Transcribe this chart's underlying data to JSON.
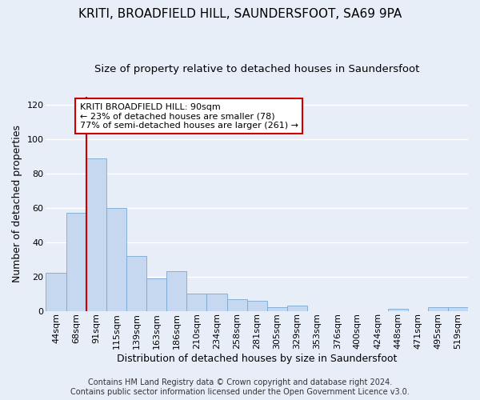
{
  "title": "KRITI, BROADFIELD HILL, SAUNDERSFOOT, SA69 9PA",
  "subtitle": "Size of property relative to detached houses in Saundersfoot",
  "xlabel": "Distribution of detached houses by size in Saundersfoot",
  "ylabel": "Number of detached properties",
  "footer_line1": "Contains HM Land Registry data © Crown copyright and database right 2024.",
  "footer_line2": "Contains public sector information licensed under the Open Government Licence v3.0.",
  "bin_labels": [
    "44sqm",
    "68sqm",
    "91sqm",
    "115sqm",
    "139sqm",
    "163sqm",
    "186sqm",
    "210sqm",
    "234sqm",
    "258sqm",
    "281sqm",
    "305sqm",
    "329sqm",
    "353sqm",
    "376sqm",
    "400sqm",
    "424sqm",
    "448sqm",
    "471sqm",
    "495sqm",
    "519sqm"
  ],
  "bar_values": [
    22,
    57,
    89,
    60,
    32,
    19,
    23,
    10,
    10,
    7,
    6,
    2,
    3,
    0,
    0,
    0,
    0,
    1,
    0,
    2,
    2
  ],
  "bar_color": "#c5d8f0",
  "bar_edge_color": "#7aa8d0",
  "vline_x_index": 2,
  "vline_color": "#cc0000",
  "annotation_text": "KRITI BROADFIELD HILL: 90sqm\n← 23% of detached houses are smaller (78)\n77% of semi-detached houses are larger (261) →",
  "annotation_box_facecolor": "#ffffff",
  "annotation_box_edgecolor": "#cc0000",
  "ylim": [
    0,
    125
  ],
  "yticks": [
    0,
    20,
    40,
    60,
    80,
    100,
    120
  ],
  "background_color": "#e8eef8",
  "plot_bg_color": "#e8eef8",
  "grid_color": "#ffffff",
  "title_fontsize": 11,
  "subtitle_fontsize": 9.5,
  "xlabel_fontsize": 9,
  "ylabel_fontsize": 9,
  "tick_fontsize": 8,
  "annotation_fontsize": 8,
  "footer_fontsize": 7
}
